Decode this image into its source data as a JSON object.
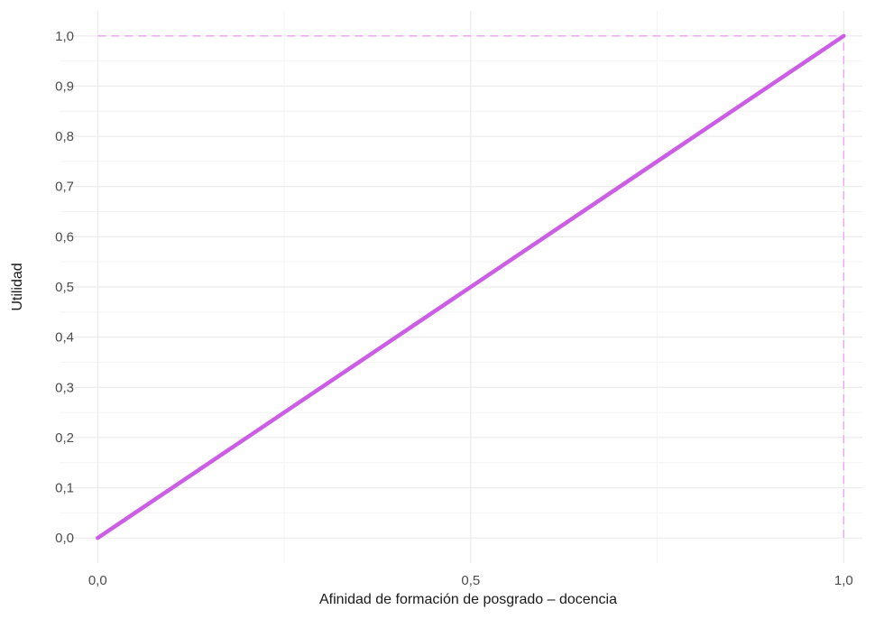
{
  "chart_data": {
    "type": "line",
    "title": "",
    "xlabel": "Afinidad de formación de posgrado – docencia",
    "ylabel": "Utilidad",
    "xlim": [
      -0.05,
      1.025
    ],
    "ylim": [
      -0.05,
      1.05
    ],
    "x_ticks": [
      0.0,
      0.5,
      1.0
    ],
    "x_tick_labels": [
      "0,0",
      "0,5",
      "1,0"
    ],
    "x_minor_ticks": [
      0.25,
      0.75
    ],
    "y_ticks": [
      0.0,
      0.1,
      0.2,
      0.3,
      0.4,
      0.5,
      0.6,
      0.7,
      0.8,
      0.9,
      1.0
    ],
    "y_tick_labels": [
      "0,0",
      "0,1",
      "0,2",
      "0,3",
      "0,4",
      "0,5",
      "0,6",
      "0,7",
      "0,8",
      "0,9",
      "1,0"
    ],
    "grid": true,
    "legend": "none",
    "series": [
      {
        "x": [
          0.0,
          1.0
        ],
        "y": [
          0.0,
          1.0
        ],
        "color": "#cc5ee6"
      }
    ],
    "reference_lines": [
      {
        "orientation": "horizontal",
        "y": 1.0,
        "from_x": 0.0,
        "to_x": 1.0,
        "style": "dashed",
        "color": "#eaa2f2"
      },
      {
        "orientation": "vertical",
        "x": 1.0,
        "from_y": 0.0,
        "to_y": 1.0,
        "style": "dashed",
        "color": "#eaa2f2"
      }
    ],
    "colors": {
      "grid_major": "#ebebeb",
      "grid_minor": "#f4f4f4"
    }
  }
}
